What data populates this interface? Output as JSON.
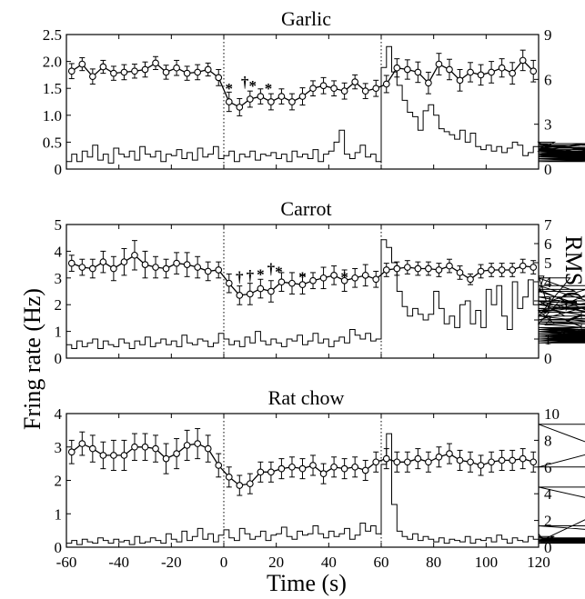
{
  "figure": {
    "ylabel_left": "Fring rate (Hz)",
    "ylabel_right": "RMS (μV)",
    "xlabel": "Time (s)"
  },
  "chart_data": [
    {
      "type": "line",
      "title": "Garlic",
      "xlim": [
        -60,
        120
      ],
      "ylim_left": [
        0,
        2.5
      ],
      "ylim_right": [
        0,
        9
      ],
      "x_ticks": [],
      "y_left_ticks": [
        "0",
        "0.5",
        "1.0",
        "1.5",
        "2.0",
        "2.5"
      ],
      "y_right_ticks": [
        "0",
        "3",
        "6",
        "9"
      ],
      "event_lines": [
        0,
        60
      ],
      "series": [
        {
          "x": [
            -58,
            -54,
            -50,
            -46,
            -42,
            -38,
            -34,
            -30,
            -26,
            -22,
            -18,
            -14,
            -10,
            -6,
            -2,
            2,
            6,
            10,
            14,
            18,
            22,
            26,
            30,
            34,
            38,
            42,
            46,
            50,
            54,
            58,
            62,
            66,
            70,
            74,
            78,
            82,
            86,
            90,
            94,
            98,
            102,
            106,
            110,
            114,
            118
          ],
          "y": [
            1.82,
            1.95,
            1.72,
            1.9,
            1.78,
            1.8,
            1.82,
            1.85,
            1.97,
            1.8,
            1.88,
            1.78,
            1.8,
            1.85,
            1.7,
            1.25,
            1.15,
            1.3,
            1.35,
            1.25,
            1.35,
            1.25,
            1.35,
            1.5,
            1.55,
            1.5,
            1.45,
            1.62,
            1.45,
            1.5,
            1.58,
            1.88,
            1.85,
            1.8,
            1.6,
            1.95,
            1.85,
            1.65,
            1.8,
            1.75,
            1.8,
            1.88,
            1.78,
            2.02,
            1.82
          ],
          "err": [
            0.14,
            0.12,
            0.14,
            0.12,
            0.13,
            0.14,
            0.13,
            0.14,
            0.12,
            0.13,
            0.14,
            0.13,
            0.14,
            0.12,
            0.15,
            0.18,
            0.16,
            0.15,
            0.14,
            0.15,
            0.14,
            0.15,
            0.16,
            0.14,
            0.15,
            0.14,
            0.15,
            0.13,
            0.14,
            0.15,
            0.16,
            0.17,
            0.18,
            0.19,
            0.2,
            0.2,
            0.19,
            0.2,
            0.18,
            0.19,
            0.2,
            0.17,
            0.2,
            0.19,
            0.2
          ]
        }
      ],
      "rms": {
        "bin_width": 2,
        "values": [
          0.5,
          1.0,
          0.5,
          1.2,
          0.8,
          1.6,
          0.6,
          1.0,
          0.4,
          1.4,
          1.0,
          0.8,
          1.2,
          0.6,
          1.5,
          1.0,
          0.8,
          1.2,
          0.5,
          1.0,
          0.9,
          1.3,
          0.7,
          1.1,
          0.6,
          1.4,
          0.8,
          1.0,
          1.5,
          0.7,
          0.9,
          1.2,
          0.5,
          1.0,
          0.8,
          1.2,
          0.6,
          1.0,
          0.9,
          1.1,
          0.7,
          1.0,
          0.5,
          1.2,
          0.8,
          1.0,
          0.7,
          1.3,
          0.5,
          1.0,
          1.2,
          1.8,
          2.6,
          1.0,
          0.7,
          1.1,
          1.6,
          0.8,
          1.0,
          0.5,
          6.8,
          8.2,
          6.5,
          5.6,
          4.6,
          3.8,
          3.5,
          2.6,
          3.9,
          4.3,
          3.6,
          2.7,
          2.5,
          2.3,
          2.0,
          2.6,
          1.8,
          2.4,
          1.5,
          1.3,
          1.6,
          1.2,
          1.5,
          1.1,
          1.4,
          1.8,
          1.6,
          0.9,
          1.1,
          1.5,
          1.8,
          1.4,
          1.2,
          1.8,
          1.0,
          1.2,
          1.5,
          0.9,
          1.4,
          1.7,
          1.3,
          1.7,
          1.1,
          1.3,
          0.8,
          1.2,
          0.9,
          0.6,
          0.8,
          1.0,
          1.2,
          0.8,
          1.3,
          0.9,
          1.4,
          1.6,
          0.8,
          1.2,
          1.0,
          0.6,
          1.0,
          0.7,
          0.9,
          1.2,
          0.8,
          0.6,
          1.0,
          1.3,
          0.5,
          0.8,
          1.2,
          0.9,
          0.6,
          1.0,
          0.8,
          1.1,
          0.7,
          0.9,
          1.3,
          0.6,
          1.0,
          0.8,
          1.2,
          0.5,
          0.9,
          1.1,
          0.7,
          1.0,
          0.8,
          0.6,
          1.1,
          0.9,
          1.2,
          0.5,
          0.8,
          1.0,
          0.7,
          0.9,
          1.1,
          0.8,
          0.6,
          1.0,
          0.9,
          1.2,
          0.7,
          0.8,
          1.0,
          0.6,
          0.9,
          1.1,
          0.8,
          1.0,
          0.7,
          0.9,
          1.2,
          0.6,
          0.8,
          1.0,
          0.7,
          0.9,
          1.1
        ]
      },
      "annotations": [
        {
          "x": 2,
          "y": 1.5,
          "text": "*"
        },
        {
          "x": 8,
          "y": 1.62,
          "text": "†"
        },
        {
          "x": 11,
          "y": 1.55,
          "text": "*"
        },
        {
          "x": 17,
          "y": 1.5,
          "text": "*"
        }
      ]
    },
    {
      "type": "line",
      "title": "Carrot",
      "xlim": [
        -60,
        120
      ],
      "ylim_left": [
        0,
        5
      ],
      "ylim_right": [
        0,
        7
      ],
      "x_ticks": [],
      "y_left_ticks": [
        "0",
        "1",
        "2",
        "3",
        "4",
        "5"
      ],
      "y_right_ticks": [
        "0",
        "1",
        "2",
        "3",
        "4",
        "5",
        "6",
        "7"
      ],
      "event_lines": [
        0,
        60
      ],
      "series": [
        {
          "x": [
            -58,
            -54,
            -50,
            -46,
            -42,
            -38,
            -34,
            -30,
            -26,
            -22,
            -18,
            -14,
            -10,
            -6,
            -2,
            2,
            6,
            10,
            14,
            18,
            22,
            26,
            30,
            34,
            38,
            42,
            46,
            50,
            54,
            58,
            62,
            66,
            70,
            74,
            78,
            82,
            86,
            90,
            94,
            98,
            102,
            106,
            110,
            114,
            118
          ],
          "y": [
            3.55,
            3.4,
            3.35,
            3.6,
            3.35,
            3.6,
            3.85,
            3.5,
            3.4,
            3.35,
            3.55,
            3.5,
            3.4,
            3.25,
            3.3,
            2.8,
            2.35,
            2.4,
            2.6,
            2.5,
            2.85,
            2.8,
            2.75,
            2.9,
            3.0,
            3.1,
            2.9,
            3.0,
            3.1,
            2.95,
            3.3,
            3.35,
            3.4,
            3.35,
            3.35,
            3.3,
            3.45,
            3.2,
            2.95,
            3.25,
            3.3,
            3.3,
            3.3,
            3.45,
            3.4
          ]
        }
      ],
      "error": [
        0.3,
        0.3,
        0.35,
        0.4,
        0.45,
        0.5,
        0.55,
        0.5,
        0.4,
        0.35,
        0.4,
        0.45,
        0.4,
        0.35,
        0.3,
        0.35,
        0.35,
        0.4,
        0.35,
        0.4,
        0.35,
        0.4,
        0.35,
        0.3,
        0.4,
        0.35,
        0.4,
        0.35,
        0.4,
        0.3,
        0.25,
        0.25,
        0.25,
        0.25,
        0.25,
        0.25,
        0.25,
        0.25,
        0.2,
        0.25,
        0.25,
        0.25,
        0.25,
        0.25,
        0.25
      ],
      "rms": {
        "bin_width": 2,
        "values": [
          0.7,
          0.5,
          0.9,
          0.6,
          0.8,
          1.0,
          0.5,
          0.9,
          0.7,
          0.6,
          1.0,
          0.8,
          0.5,
          0.9,
          0.7,
          1.1,
          0.6,
          0.8,
          1.0,
          0.7,
          0.9,
          0.6,
          1.2,
          0.8,
          0.7,
          1.0,
          0.9,
          0.6,
          0.8,
          1.3,
          1.0,
          0.7,
          0.9,
          0.6,
          1.1,
          0.8,
          1.4,
          0.9,
          0.7,
          1.0,
          0.8,
          0.6,
          1.0,
          0.9,
          1.2,
          0.7,
          0.9,
          1.3,
          0.8,
          1.0,
          0.6,
          0.9,
          1.1,
          0.8,
          1.5,
          1.2,
          1.0,
          1.3,
          0.9,
          1.0,
          6.2,
          5.8,
          5.0,
          3.5,
          2.7,
          2.2,
          2.6,
          2.3,
          2.0,
          2.3,
          3.5,
          2.6,
          1.8,
          2.2,
          1.6,
          2.8,
          3.0,
          1.8,
          2.5,
          1.6,
          3.6,
          2.8,
          3.8,
          2.2,
          1.5,
          4.0,
          2.6,
          3.2,
          4.1,
          2.8,
          3.4,
          4.3,
          2.5,
          1.8,
          3.0,
          2.2,
          4.2,
          3.5,
          2.8,
          3.6,
          2.4,
          3.0,
          2.2,
          3.8,
          2.6,
          2.0,
          3.2,
          2.4,
          3.0,
          2.6,
          2.8,
          2.0,
          2.2,
          1.5,
          1.8,
          1.2,
          1.0,
          1.4,
          0.8,
          1.2,
          0.9,
          1.6,
          1.2,
          0.8,
          1.0,
          1.4,
          1.9,
          1.5,
          1.2,
          1.0,
          0.8,
          1.1,
          1.4,
          1.0,
          0.9,
          1.2,
          1.5,
          1.0,
          1.3,
          0.9,
          1.4,
          1.0,
          1.2,
          1.4,
          1.1,
          0.9,
          1.2,
          0.8,
          1.3,
          1.0,
          1.2,
          1.5,
          1.0,
          0.8,
          1.2,
          0.9,
          1.4,
          1.0,
          1.1,
          1.3,
          0.9,
          1.2,
          0.8,
          1.0,
          1.4,
          0.9,
          1.1,
          1.3,
          1.0,
          1.2,
          0.8,
          1.0,
          1.2,
          1.0,
          1.1,
          1.3,
          1.0,
          1.2,
          1.5,
          0.9,
          1.1,
          1.2,
          0.9,
          1.1,
          1.3,
          1.0,
          1.2
        ]
      },
      "annotations": [
        {
          "x": 6,
          "y": 3.05,
          "text": "†"
        },
        {
          "x": 10,
          "y": 3.1,
          "text": "†"
        },
        {
          "x": 14,
          "y": 3.15,
          "text": "*"
        },
        {
          "x": 18,
          "y": 3.35,
          "text": "†"
        },
        {
          "x": 21,
          "y": 3.25,
          "text": "*"
        },
        {
          "x": 30,
          "y": 3.05,
          "text": "*"
        },
        {
          "x": 46,
          "y": 3.05,
          "text": "*"
        }
      ]
    },
    {
      "type": "line",
      "title": "Rat chow",
      "xlim": [
        -60,
        120
      ],
      "ylim_left": [
        0,
        4
      ],
      "ylim_right": [
        0,
        10
      ],
      "x_ticks": [
        "-60",
        "-40",
        "-20",
        "0",
        "20",
        "40",
        "60",
        "80",
        "100",
        "120"
      ],
      "y_left_ticks": [
        "0",
        "1",
        "2",
        "3",
        "4"
      ],
      "y_right_ticks": [
        "0",
        "2",
        "4",
        "6",
        "8",
        "10"
      ],
      "event_lines": [
        0,
        60
      ],
      "series": [
        {
          "x": [
            -58,
            -54,
            -50,
            -46,
            -42,
            -38,
            -34,
            -30,
            -26,
            -22,
            -18,
            -14,
            -10,
            -6,
            -2,
            2,
            6,
            10,
            14,
            18,
            22,
            26,
            30,
            34,
            38,
            42,
            46,
            50,
            54,
            58,
            62,
            66,
            70,
            74,
            78,
            82,
            86,
            90,
            94,
            98,
            102,
            106,
            110,
            114,
            118
          ],
          "y": [
            2.85,
            3.1,
            2.95,
            2.75,
            2.75,
            2.75,
            3.0,
            3.0,
            2.95,
            2.65,
            2.8,
            3.05,
            3.1,
            2.95,
            2.45,
            2.1,
            1.85,
            1.9,
            2.25,
            2.25,
            2.35,
            2.4,
            2.35,
            2.45,
            2.2,
            2.4,
            2.35,
            2.4,
            2.3,
            2.55,
            2.65,
            2.55,
            2.55,
            2.65,
            2.55,
            2.7,
            2.8,
            2.6,
            2.55,
            2.45,
            2.55,
            2.6,
            2.6,
            2.65,
            2.55
          ]
        }
      ],
      "error": [
        0.35,
        0.35,
        0.4,
        0.4,
        0.45,
        0.45,
        0.4,
        0.4,
        0.4,
        0.45,
        0.45,
        0.45,
        0.45,
        0.4,
        0.35,
        0.3,
        0.3,
        0.3,
        0.3,
        0.3,
        0.3,
        0.3,
        0.3,
        0.3,
        0.3,
        0.3,
        0.3,
        0.3,
        0.3,
        0.3,
        0.3,
        0.3,
        0.3,
        0.3,
        0.3,
        0.3,
        0.3,
        0.3,
        0.3,
        0.3,
        0.3,
        0.3,
        0.3,
        0.3,
        0.3
      ],
      "rms": {
        "bin_width": 2,
        "values": [
          0.3,
          0.5,
          0.2,
          0.6,
          0.4,
          0.3,
          0.7,
          0.5,
          0.3,
          0.6,
          0.4,
          0.5,
          0.2,
          0.8,
          0.3,
          0.4,
          0.7,
          0.5,
          0.3,
          1.0,
          0.6,
          0.4,
          1.2,
          0.5,
          0.8,
          1.4,
          0.6,
          1.0,
          0.4,
          0.9,
          1.3,
          0.7,
          0.5,
          1.4,
          1.0,
          0.6,
          0.8,
          1.2,
          0.5,
          0.9,
          1.0,
          1.5,
          0.8,
          0.6,
          1.2,
          0.9,
          1.0,
          1.6,
          1.0,
          0.7,
          1.2,
          0.8,
          1.0,
          1.4,
          0.6,
          0.9,
          1.8,
          1.2,
          1.6,
          1.0,
          6.2,
          8.5,
          3.2,
          1.2,
          0.8,
          0.6,
          1.0,
          0.5,
          0.8,
          0.6,
          0.4,
          0.7,
          0.3,
          0.6,
          0.5,
          0.4,
          0.8,
          0.3,
          0.6,
          0.5,
          0.7,
          0.4,
          0.9,
          0.6,
          0.3,
          0.7,
          0.5,
          0.4,
          0.8,
          0.6,
          1.0,
          0.5,
          0.4,
          0.8,
          0.3,
          0.6,
          0.5,
          0.7,
          0.4,
          0.6,
          0.3,
          0.5,
          0.7,
          0.4,
          0.6,
          0.5,
          0.3,
          0.7,
          0.4,
          0.5,
          0.6,
          0.3,
          0.5,
          0.7,
          0.4,
          0.6,
          0.5,
          0.3,
          0.6,
          0.4,
          6.0,
          9.2,
          4.5,
          1.6,
          0.6,
          0.3,
          0.4,
          0.5,
          0.3,
          0.6,
          0.4,
          0.5,
          0.7,
          0.3,
          0.5,
          0.6,
          0.4,
          0.5,
          0.7,
          0.3,
          0.6,
          0.4,
          0.5,
          0.3,
          0.6,
          0.4,
          0.7,
          0.5,
          0.3,
          0.6,
          0.4,
          0.5,
          0.3,
          0.6,
          0.4,
          0.5,
          0.7,
          0.3,
          0.5,
          0.4,
          0.6,
          0.5,
          0.3,
          0.4,
          0.6,
          0.5,
          0.3,
          0.4,
          0.6,
          0.5,
          0.3,
          0.4,
          0.5,
          0.6,
          0.4,
          0.3,
          0.5,
          0.4,
          0.6,
          0.5
        ]
      },
      "annotations": []
    }
  ]
}
